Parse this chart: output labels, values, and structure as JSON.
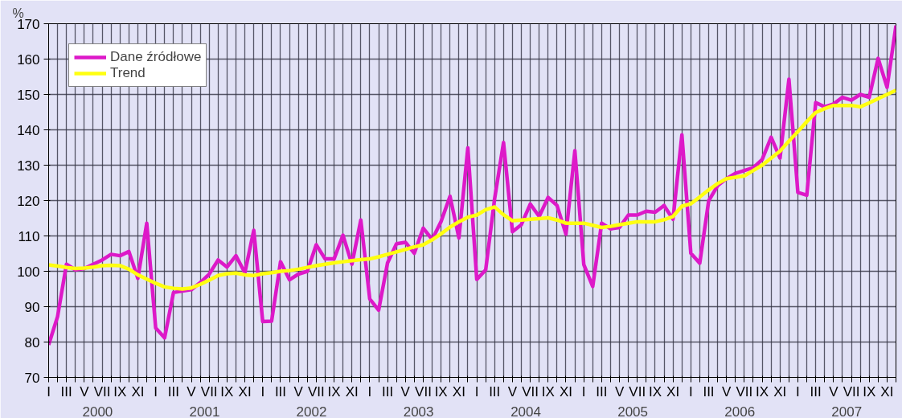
{
  "chart_data": {
    "type": "line",
    "ylabel": "%",
    "categories": [
      "I",
      null,
      "III",
      null,
      "V",
      null,
      "VII",
      null,
      "IX",
      null,
      "XI",
      null,
      "I",
      null,
      "III",
      null,
      "V",
      null,
      "VII",
      null,
      "IX",
      null,
      "XI",
      null,
      "I",
      null,
      "III",
      null,
      "V",
      null,
      "VII",
      null,
      "IX",
      null,
      "XI",
      null,
      "I",
      null,
      "III",
      null,
      "V",
      null,
      "VII",
      null,
      "IX",
      null,
      "XI",
      null,
      "I",
      null,
      "III",
      null,
      "V",
      null,
      "VII",
      null,
      "IX",
      null,
      "XI",
      null,
      "I",
      null,
      "III",
      null,
      "V",
      null,
      "VII",
      null,
      "IX",
      null,
      "XI",
      null,
      "I",
      null,
      "III",
      null,
      "V",
      null,
      "VII",
      null,
      "IX",
      null,
      "XI",
      null,
      "I",
      null,
      "III",
      null,
      "V",
      null,
      "VII",
      null,
      "IX",
      null,
      "XI",
      null
    ],
    "series": [
      {
        "name": "Dane źródłowe",
        "color": "#dd19c8",
        "values": [
          79.2,
          87.2,
          102,
          100.4,
          100.8,
          102,
          103.2,
          104.8,
          104.4,
          105.6,
          98,
          113.6,
          84,
          81.2,
          94,
          94.4,
          94.8,
          96.8,
          99.2,
          103.2,
          101.2,
          104.4,
          99.6,
          111.6,
          85.8,
          85.9,
          102.7,
          97.6,
          99.2,
          100,
          107.5,
          103.5,
          103.5,
          110.2,
          102,
          114.5,
          92.2,
          89,
          102.4,
          107.8,
          108.2,
          105.1,
          112.2,
          109,
          114.1,
          121.2,
          109.4,
          134.9,
          97.7,
          100.4,
          120.5,
          136.4,
          111.2,
          113.2,
          119,
          115.5,
          120.9,
          118.6,
          110.5,
          134.1,
          101.9,
          95.7,
          113.6,
          112,
          112.4,
          115.9,
          115.9,
          117,
          116.7,
          118.6,
          114.7,
          138.6,
          105.1,
          102.3,
          119.9,
          124.2,
          126.2,
          127.7,
          128.5,
          129.3,
          131.6,
          137.9,
          132,
          154.3,
          122.3,
          121.5,
          147.7,
          146.5,
          147.3,
          149.2,
          148.4,
          150,
          149.2,
          160.2,
          152,
          169.5
        ]
      },
      {
        "name": "Trend",
        "color": "#ffff10",
        "values": [
          101.8,
          101.5,
          101.1,
          100.8,
          100.9,
          101.2,
          101.6,
          101.7,
          101.6,
          100.6,
          99.0,
          97.8,
          96.6,
          95.6,
          95.2,
          95.0,
          95.3,
          96.3,
          97.5,
          98.8,
          99.3,
          99.5,
          99.0,
          98.8,
          99.3,
          99.6,
          100.0,
          100.2,
          100.6,
          101.1,
          101.6,
          102.0,
          102.4,
          102.7,
          103.0,
          103.3,
          103.5,
          104.1,
          104.8,
          105.5,
          106.2,
          106.9,
          107.5,
          108.9,
          110.6,
          112.5,
          114.0,
          115.3,
          115.9,
          117.4,
          118.2,
          116.0,
          114.3,
          114.5,
          114.7,
          114.9,
          115.1,
          114.5,
          113.6,
          113.6,
          113.6,
          113.0,
          112.4,
          112.7,
          113.2,
          113.6,
          114.0,
          114.0,
          114.0,
          114.6,
          115.5,
          118.4,
          119.1,
          121.0,
          123.0,
          124.8,
          126.2,
          126.6,
          127.0,
          128.5,
          130.0,
          132.0,
          134.0,
          136.8,
          139.5,
          142.3,
          144.9,
          146.0,
          146.9,
          146.9,
          146.9,
          146.5,
          147.6,
          148.8,
          150.0,
          151.2
        ]
      }
    ],
    "x2lim": [
      "2000-01",
      "2007-12"
    ],
    "x2ticks": [
      {
        "value": "2000-06-16",
        "label": "2000"
      },
      {
        "value": "2001-06-16",
        "label": "2001"
      },
      {
        "value": "2002-06-16",
        "label": "2002"
      },
      {
        "value": "2003-06-16",
        "label": "2003"
      },
      {
        "value": "2004-06-16",
        "label": "2004"
      },
      {
        "value": "2005-06-16",
        "label": "2005"
      },
      {
        "value": "2006-06-16",
        "label": "2006"
      },
      {
        "value": "2007-06-16",
        "label": "2007"
      }
    ],
    "ylim": [
      70,
      170
    ],
    "yticks": [
      70,
      80,
      90,
      100,
      110,
      120,
      130,
      140,
      150,
      160,
      170
    ],
    "grid": true,
    "legend": "top left",
    "marker": "none",
    "line_style": "solid"
  }
}
